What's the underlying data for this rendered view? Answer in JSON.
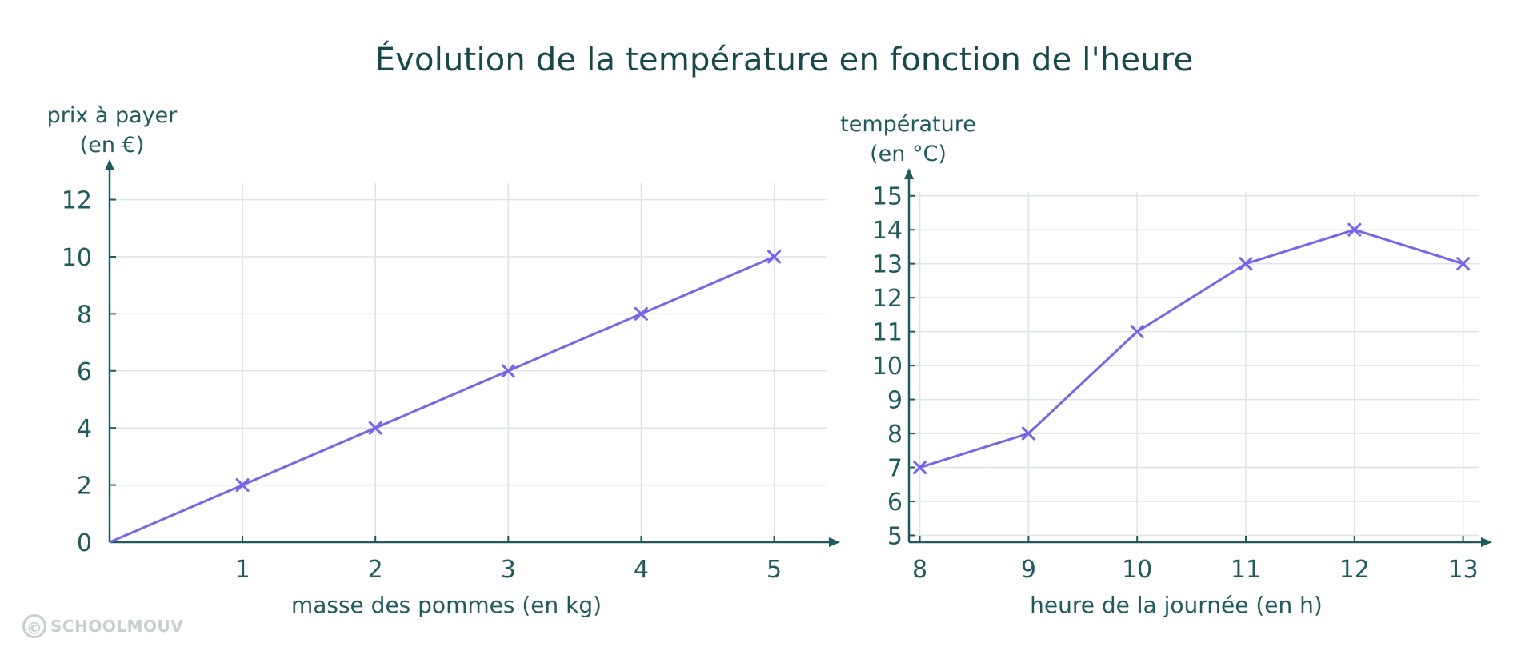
{
  "title": "Évolution de la température en fonction de l'heure",
  "watermark": {
    "symbol": "©",
    "text": "SCHOOLMOUV"
  },
  "colors": {
    "line": "#7765e9",
    "axis": "#1f5a5c",
    "grid": "#dde4e6",
    "text": "#1f5a5c"
  },
  "chart_data": [
    {
      "type": "line",
      "title": "",
      "ylabel_line1": "prix à payer",
      "ylabel_line2": "(en €)",
      "xlabel": "masse des pommes (en kg)",
      "xlim": [
        0,
        5.4
      ],
      "ylim": [
        0,
        12.8
      ],
      "xticks": [
        1,
        2,
        3,
        4,
        5
      ],
      "yticks": [
        0,
        2,
        4,
        6,
        8,
        10,
        12
      ],
      "grid": true,
      "series": [
        {
          "x": [
            0,
            1,
            2,
            3,
            4,
            5
          ],
          "y": [
            0,
            2,
            4,
            6,
            8,
            10
          ],
          "markers": [
            false,
            true,
            true,
            true,
            true,
            true
          ]
        }
      ]
    },
    {
      "type": "line",
      "title": "",
      "ylabel_line1": "température",
      "ylabel_line2": "(en °C)",
      "xlabel": "heure de la journée (en h)",
      "xlim": [
        7.9,
        13.15
      ],
      "ylim": [
        4.8,
        15.3
      ],
      "xticks": [
        8,
        9,
        10,
        11,
        12,
        13
      ],
      "yticks": [
        5,
        6,
        7,
        8,
        9,
        10,
        11,
        12,
        13,
        14,
        15
      ],
      "grid": true,
      "series": [
        {
          "x": [
            8,
            9,
            10,
            11,
            12,
            13
          ],
          "y": [
            7,
            8,
            11,
            13,
            14,
            13
          ],
          "markers": [
            true,
            true,
            true,
            true,
            true,
            true
          ]
        }
      ]
    }
  ]
}
